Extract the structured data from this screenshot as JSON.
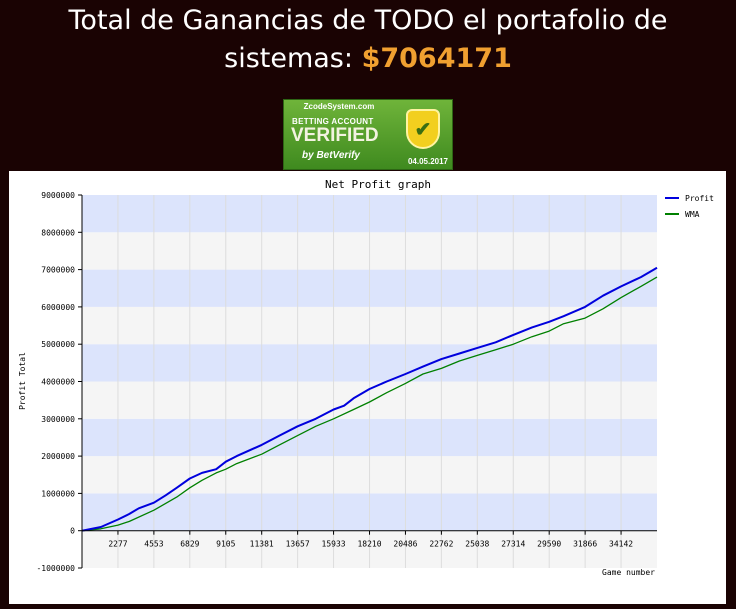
{
  "header": {
    "title_line1": "Total de Ganancias de TODO el portafolio de",
    "title_line2": "sistemas:",
    "total_amount": "$7064171"
  },
  "badge": {
    "site": "ZcodeSystem.com",
    "line1": "BETTING ACCOUNT",
    "line2": "VERIFIED",
    "line3": "by BetVerify",
    "date": "04.05.2017",
    "icon": "check-shield-icon"
  },
  "chart_data": {
    "type": "line",
    "title": "Net Profit graph",
    "xlabel": "Game number",
    "ylabel": "Profit Total",
    "xlim": [
      0,
      36418
    ],
    "ylim": [
      -1000000,
      9000000
    ],
    "x_ticks": [
      2277,
      4553,
      6829,
      9105,
      11381,
      13657,
      15933,
      18210,
      20486,
      22762,
      25038,
      27314,
      29590,
      31866,
      34142
    ],
    "x_tick_labels": [
      "2277",
      "4553",
      "6829",
      "9105",
      "11381",
      "13657",
      "15933",
      "18210",
      "20486",
      "22762",
      "25038",
      "27314",
      "29590",
      "31866",
      "34142"
    ],
    "y_ticks": [
      -1000000,
      0,
      1000000,
      2000000,
      3000000,
      4000000,
      5000000,
      6000000,
      7000000,
      8000000,
      9000000
    ],
    "y_tick_labels": [
      "-1000000",
      "0",
      "1000000",
      "2000000",
      "3000000",
      "4000000",
      "5000000",
      "6000000",
      "7000000",
      "8000000",
      "9000000"
    ],
    "legend_position": "right",
    "grid": true,
    "series": [
      {
        "name": "Profit",
        "color": "#0000dd",
        "x": [
          0,
          1200,
          2277,
          3000,
          3600,
          4553,
          5300,
          6000,
          6829,
          7600,
          8500,
          9105,
          9800,
          11381,
          12500,
          13657,
          14800,
          15933,
          16600,
          17200,
          18210,
          19300,
          20486,
          21600,
          22762,
          23900,
          25038,
          26200,
          27314,
          28500,
          29590,
          30500,
          31866,
          33000,
          34142,
          35400,
          36418
        ],
        "values": [
          0,
          100000,
          300000,
          450000,
          600000,
          750000,
          950000,
          1150000,
          1400000,
          1550000,
          1650000,
          1850000,
          2000000,
          2300000,
          2550000,
          2800000,
          3000000,
          3250000,
          3350000,
          3550000,
          3800000,
          4000000,
          4200000,
          4400000,
          4600000,
          4750000,
          4900000,
          5050000,
          5250000,
          5450000,
          5600000,
          5750000,
          6000000,
          6300000,
          6550000,
          6800000,
          7050000
        ]
      },
      {
        "name": "WMA",
        "color": "#008000",
        "x": [
          0,
          1200,
          2277,
          3000,
          4553,
          6000,
          6829,
          7600,
          8500,
          9105,
          9800,
          11381,
          12500,
          13657,
          14800,
          15933,
          17200,
          18210,
          19300,
          20486,
          21600,
          22762,
          23900,
          25038,
          26200,
          27314,
          28500,
          29590,
          30500,
          31866,
          33000,
          34142,
          35400,
          36418
        ],
        "values": [
          0,
          50000,
          150000,
          250000,
          550000,
          900000,
          1150000,
          1350000,
          1550000,
          1650000,
          1800000,
          2050000,
          2300000,
          2550000,
          2800000,
          3000000,
          3250000,
          3450000,
          3700000,
          3950000,
          4200000,
          4350000,
          4550000,
          4700000,
          4850000,
          5000000,
          5200000,
          5350000,
          5550000,
          5700000,
          5950000,
          6250000,
          6550000,
          6800000
        ]
      }
    ]
  }
}
